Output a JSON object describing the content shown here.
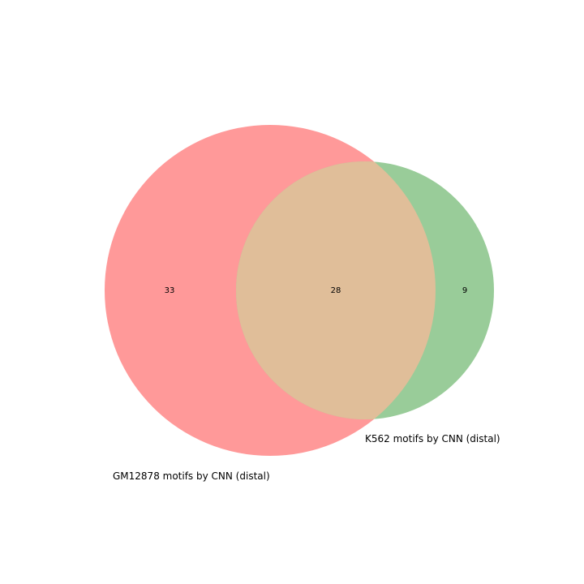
{
  "diagram": {
    "type": "venn2",
    "sets": [
      {
        "label": "GM12878 motifs by CNN (distal)",
        "color": "#ff9999"
      },
      {
        "label": "K562 motifs by CNN (distal)",
        "color": "#99cc99"
      }
    ],
    "regions": {
      "only_a": "33",
      "both": "28",
      "only_b": "9"
    },
    "overlap_color": "#e0be99"
  }
}
